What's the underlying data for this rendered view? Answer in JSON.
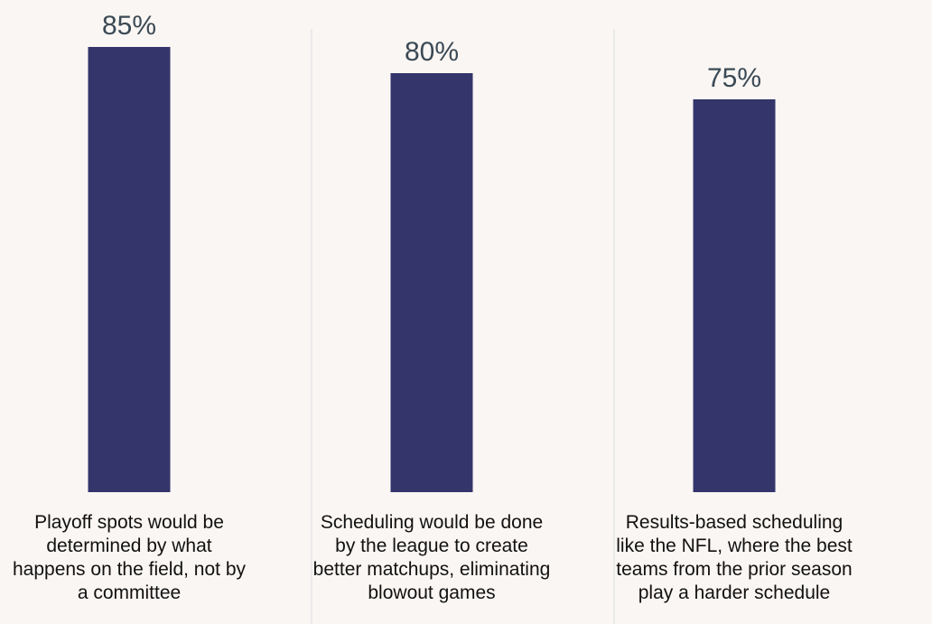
{
  "chart_data": {
    "type": "bar",
    "categories": [
      "Playoff spots would be\ndetermined by what\nhappens on the field, not by\na committee",
      "Scheduling would be done\nby the league to create\nbetter matchups, eliminating\nblowout games",
      "Results-based scheduling\nlike the NFL, where the best\nteams from the prior season\nplay a harder schedule"
    ],
    "values": [
      85,
      80,
      75
    ],
    "value_labels": [
      "85%",
      "80%",
      "75%"
    ],
    "ylim": [
      0,
      100
    ],
    "grid": false,
    "colors": {
      "bar": "#33356b",
      "divider": "#d9dde3",
      "background": "#faf6f3",
      "value_text": "#3b4a55",
      "category_text": "#111111"
    }
  }
}
